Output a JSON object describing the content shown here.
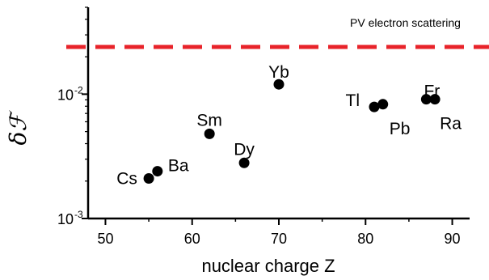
{
  "chart_data": {
    "type": "scatter",
    "title": "",
    "xlabel": "nuclear charge  Z",
    "ylabel": "δℱ",
    "x_range": [
      48,
      92
    ],
    "y_range": [
      0.001,
      0.05
    ],
    "y_scale": "log",
    "x_ticks": [
      "50",
      "60",
      "70",
      "80",
      "90"
    ],
    "y_ticks": [
      {
        "base": "10",
        "exp": "-3"
      },
      {
        "base": "10",
        "exp": "-2"
      }
    ],
    "points": [
      {
        "label": "Cs",
        "x": 55,
        "y": 0.0021
      },
      {
        "label": "Ba",
        "x": 56,
        "y": 0.0024
      },
      {
        "label": "Sm",
        "x": 62,
        "y": 0.0048
      },
      {
        "label": "Dy",
        "x": 66,
        "y": 0.0028
      },
      {
        "label": "Yb",
        "x": 70,
        "y": 0.012
      },
      {
        "label": "Tl",
        "x": 81,
        "y": 0.0079
      },
      {
        "label": "Pb",
        "x": 82,
        "y": 0.0083
      },
      {
        "label": "Fr",
        "x": 87,
        "y": 0.0091
      },
      {
        "label": "Ra",
        "x": 88,
        "y": 0.0091
      }
    ],
    "reference_line": {
      "label": "PV electron scattering",
      "y": 0.024,
      "color": "#e8232a",
      "style": "dashed"
    },
    "grid": false
  }
}
